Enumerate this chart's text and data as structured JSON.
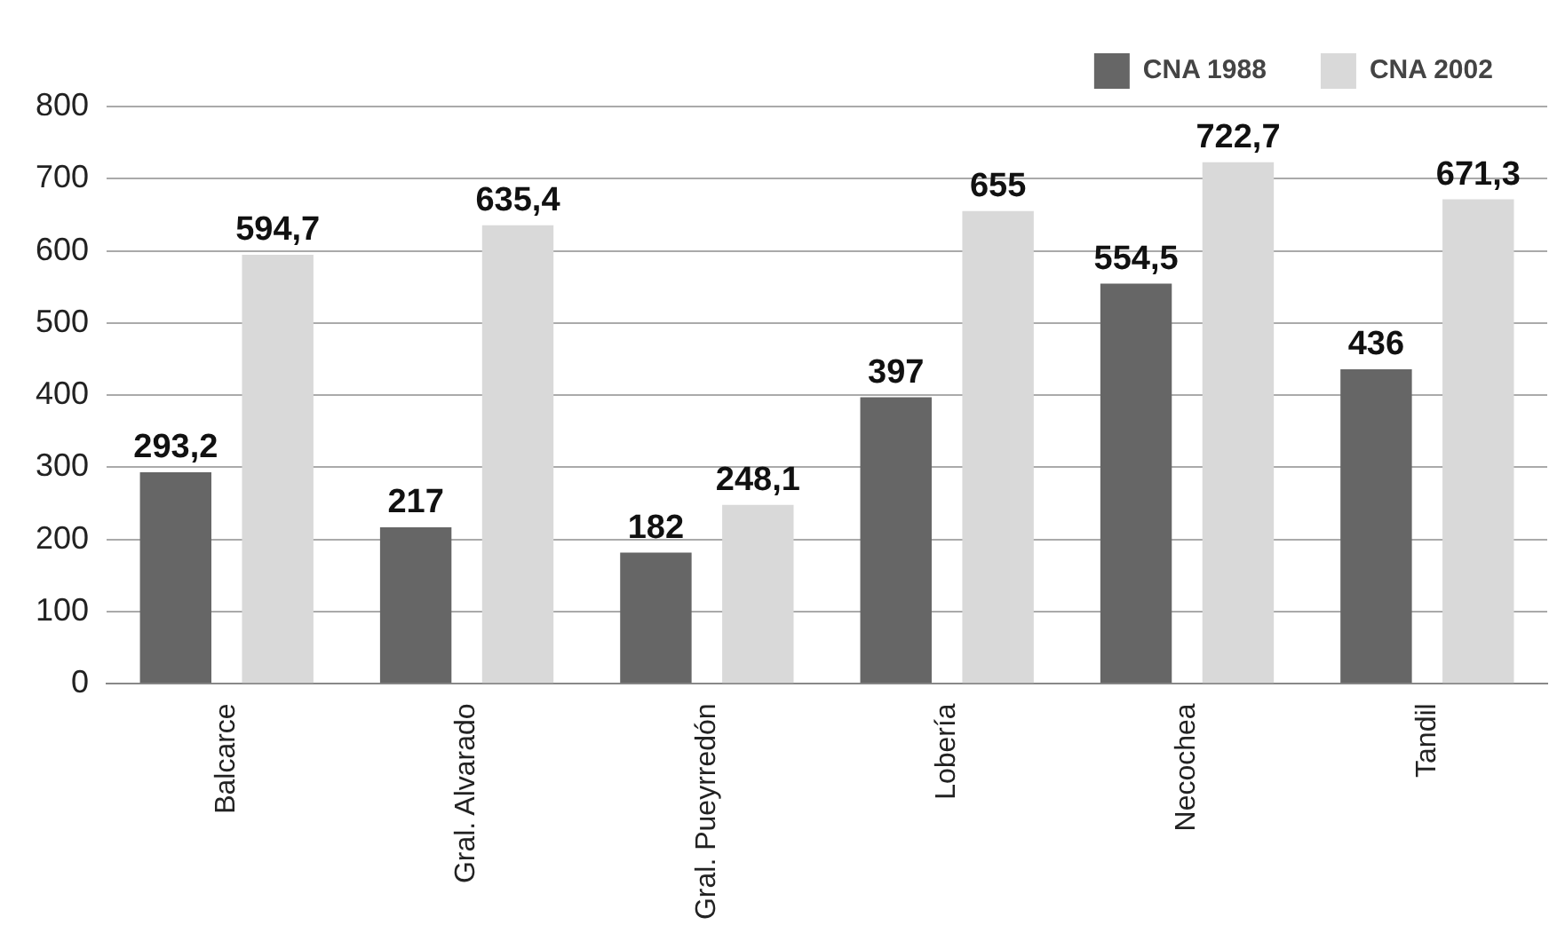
{
  "chart_data": {
    "type": "bar",
    "categories": [
      "Balcarce",
      "Gral. Alvarado",
      "Gral. Pueyrredón",
      "Lobería",
      "Necochea",
      "Tandil"
    ],
    "series": [
      {
        "name": "CNA 1988",
        "color": "#666666",
        "values": [
          293.2,
          217,
          182,
          397,
          554.5,
          436
        ],
        "value_labels": [
          "293,2",
          "217",
          "182",
          "397",
          "554,5",
          "436"
        ]
      },
      {
        "name": "CNA 2002",
        "color": "#d9d9d9",
        "values": [
          594.7,
          635.4,
          248.1,
          655,
          722.7,
          671.3
        ],
        "value_labels": [
          "594,7",
          "635,4",
          "248,1",
          "655",
          "722,7",
          "671,3"
        ]
      }
    ],
    "ylim": [
      0,
      800
    ],
    "yticks": [
      0,
      100,
      200,
      300,
      400,
      500,
      600,
      700,
      800
    ],
    "grid": "y",
    "legend": "top right"
  }
}
